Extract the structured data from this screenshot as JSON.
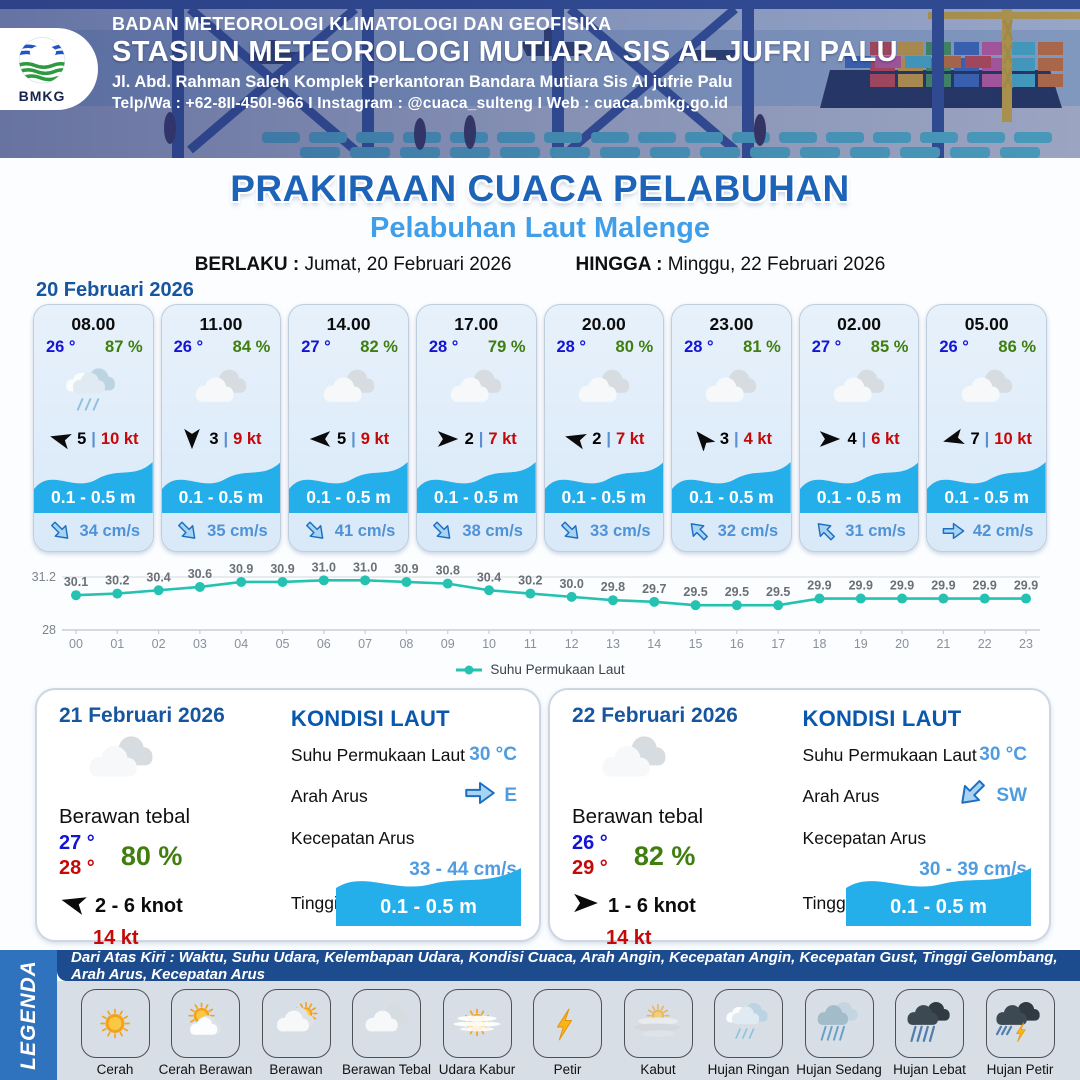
{
  "header": {
    "agency": "BADAN METEOROLOGI KLIMATOLOGI DAN GEOFISIKA",
    "station": "STASIUN METEOROLOGI MUTIARA SIS AL JUFRI PALU",
    "address": "Jl. Abd. Rahman Saleh Komplek Perkantoran Bandara Mutiara Sis Al jufrie Palu",
    "contact": "Telp/Wa : +62-8II-450I-966  I  Instagram : @cuaca_sulteng  I  Web : cuaca.bmkg.go.id",
    "logo_text": "BMKG"
  },
  "title": {
    "main": "PRAKIRAAN CUACA PELABUHAN",
    "subtitle": "Pelabuhan Laut Malenge",
    "valid_from_label": "BERLAKU :",
    "valid_from": "Jumat, 20 Februari 2026",
    "valid_to_label": "HINGGA :",
    "valid_to": "Minggu, 22 Februari 2026"
  },
  "forecast_day_label": "20 Februari 2026",
  "hourly": [
    {
      "time": "08.00",
      "temp": "26 °",
      "humidity": "87 %",
      "icon": "hujan-ringan",
      "wind_speed": "5",
      "gust": "10 kt",
      "wind_deg": 285,
      "wave": "0.1 - 0.5 m",
      "current": "34 cm/s",
      "current_deg": 135
    },
    {
      "time": "11.00",
      "temp": "26 °",
      "humidity": "84 %",
      "icon": "berawan-tebal",
      "wind_speed": "3",
      "gust": "9 kt",
      "wind_deg": 180,
      "wave": "0.1 - 0.5 m",
      "current": "35 cm/s",
      "current_deg": 135
    },
    {
      "time": "14.00",
      "temp": "27 °",
      "humidity": "82 %",
      "icon": "berawan-tebal",
      "wind_speed": "5",
      "gust": "9 kt",
      "wind_deg": 270,
      "wave": "0.1 - 0.5 m",
      "current": "41 cm/s",
      "current_deg": 135
    },
    {
      "time": "17.00",
      "temp": "28 °",
      "humidity": "79 %",
      "icon": "berawan-tebal",
      "wind_speed": "2",
      "gust": "7 kt",
      "wind_deg": 90,
      "wave": "0.1 - 0.5 m",
      "current": "38 cm/s",
      "current_deg": 135
    },
    {
      "time": "20.00",
      "temp": "28 °",
      "humidity": "80 %",
      "icon": "berawan-tebal",
      "wind_speed": "2",
      "gust": "7 kt",
      "wind_deg": 285,
      "wave": "0.1 - 0.5 m",
      "current": "33 cm/s",
      "current_deg": 135
    },
    {
      "time": "23.00",
      "temp": "28 °",
      "humidity": "81 %",
      "icon": "berawan-tebal",
      "wind_speed": "3",
      "gust": "4 kt",
      "wind_deg": 320,
      "wave": "0.1 - 0.5 m",
      "current": "32 cm/s",
      "current_deg": 315
    },
    {
      "time": "02.00",
      "temp": "27 °",
      "humidity": "85 %",
      "icon": "berawan-tebal",
      "wind_speed": "4",
      "gust": "6 kt",
      "wind_deg": 90,
      "wave": "0.1 - 0.5 m",
      "current": "31 cm/s",
      "current_deg": 315
    },
    {
      "time": "05.00",
      "temp": "26 °",
      "humidity": "86 %",
      "icon": "berawan-tebal",
      "wind_speed": "7",
      "gust": "10 kt",
      "wind_deg": 255,
      "wave": "0.1 - 0.5 m",
      "current": "42 cm/s",
      "current_deg": 90
    }
  ],
  "chart_data": {
    "type": "line",
    "series": [
      {
        "name": "Suhu Permukaan Laut",
        "values": [
          30.1,
          30.2,
          30.4,
          30.6,
          30.9,
          30.9,
          31.0,
          31.0,
          30.9,
          30.8,
          30.4,
          30.2,
          30.0,
          29.8,
          29.7,
          29.5,
          29.5,
          29.5,
          29.9,
          29.9,
          29.9,
          29.9,
          29.9,
          29.9
        ]
      }
    ],
    "x": [
      "00",
      "01",
      "02",
      "03",
      "04",
      "05",
      "06",
      "07",
      "08",
      "09",
      "10",
      "11",
      "12",
      "13",
      "14",
      "15",
      "16",
      "17",
      "18",
      "19",
      "20",
      "21",
      "22",
      "23"
    ],
    "ylim": [
      28,
      31.2
    ],
    "yticks": [
      "31.2",
      "28"
    ],
    "legend": "Suhu Permukaan Laut",
    "line_color": "#25c2b2",
    "grid": true,
    "legend_position": "bottom"
  },
  "daily_labels": {
    "heading": "KONDISI LAUT",
    "sst": "Suhu Permukaan Laut",
    "arah": "Arah Arus",
    "kecepatan": "Kecepatan Arus",
    "tinggi": "Tinggi Gelombang"
  },
  "daily": [
    {
      "date": "21 Februari 2026",
      "condition": "Berawan tebal",
      "icon": "berawan-tebal",
      "temp_min": "27 °",
      "temp_max": "28 °",
      "humidity": "80 %",
      "wind": "2 - 6 knot",
      "wind_deg": 285,
      "gust": "14 kt",
      "sst": "30 °C",
      "current_dir": "E",
      "current_deg": 90,
      "current_speed": "33 - 44 cm/s",
      "wave": "0.1 - 0.5 m"
    },
    {
      "date": "22 Februari 2026",
      "condition": "Berawan tebal",
      "icon": "berawan-tebal",
      "temp_min": "26 °",
      "temp_max": "29 °",
      "humidity": "82 %",
      "wind": "1 - 6 knot",
      "wind_deg": 90,
      "gust": "14 kt",
      "sst": "30 °C",
      "current_dir": "SW",
      "current_deg": 225,
      "current_speed": "30 - 39 cm/s",
      "wave": "0.1 - 0.5 m"
    }
  ],
  "legend": {
    "tab": "LEGENDA",
    "header": "Dari Atas Kiri : Waktu, Suhu Udara, Kelembapan Udara, Kondisi Cuaca, Arah Angin, Kecepatan Angin, Kecepatan Gust, Tinggi Gelombang, Arah Arus, Kecepatan Arus",
    "items": [
      {
        "label": "Cerah",
        "icon": "cerah"
      },
      {
        "label": "Cerah Berawan",
        "icon": "cerah-berawan"
      },
      {
        "label": "Berawan",
        "icon": "berawan"
      },
      {
        "label": "Berawan Tebal",
        "icon": "berawan-tebal"
      },
      {
        "label": "Udara Kabur",
        "icon": "udara-kabur"
      },
      {
        "label": "Petir",
        "icon": "petir"
      },
      {
        "label": "Kabut",
        "icon": "kabut"
      },
      {
        "label": "Hujan Ringan",
        "icon": "hujan-ringan"
      },
      {
        "label": "Hujan Sedang",
        "icon": "hujan-sedang"
      },
      {
        "label": "Hujan Lebat",
        "icon": "hujan-lebat"
      },
      {
        "label": "Hujan Petir",
        "icon": "hujan-petir"
      }
    ]
  },
  "colors": {
    "accent_blue": "#1d64b8",
    "subtitle_blue": "#419ee8",
    "wave_blue": "#24aeea",
    "temp_blue": "#1414d6",
    "humidity_green": "#3f7e0f",
    "gust_red": "#c50808",
    "value_blue": "#4f9ce0",
    "chart_teal": "#25c2b2",
    "legend_navy": "#1c4c8e",
    "legend_tab_blue": "#2f72bd"
  }
}
